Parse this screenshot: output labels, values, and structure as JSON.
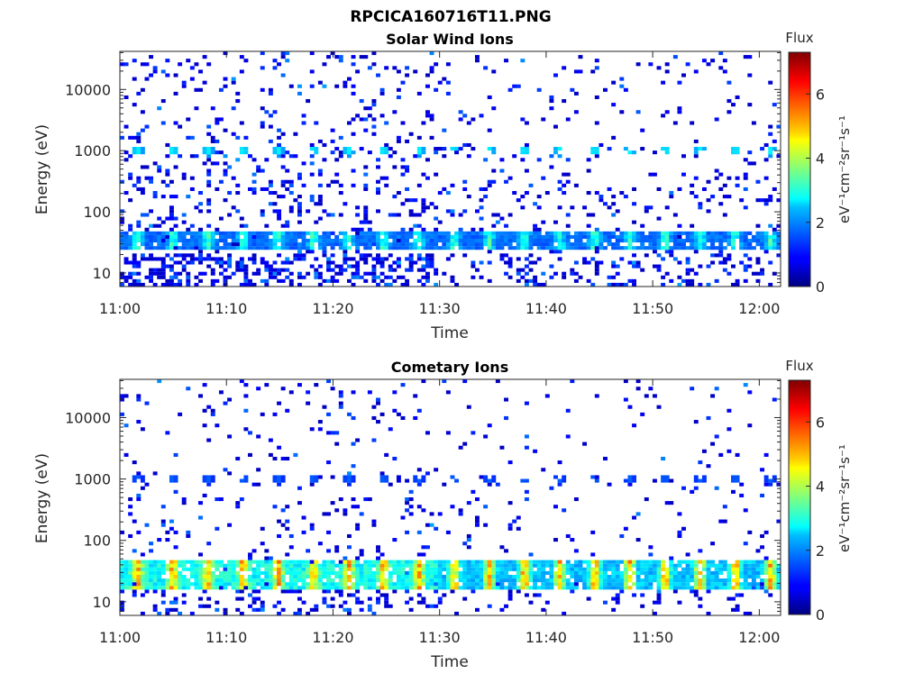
{
  "figure_title": "RPCICA160716T11.PNG",
  "colors": {
    "axis": "#262626",
    "background": "#ffffff"
  },
  "chart_data": [
    {
      "type": "heatmap",
      "title": "Solar Wind Ions",
      "xlabel": "Time",
      "ylabel": "Energy (eV)",
      "x_ticks": [
        "11:00",
        "11:10",
        "11:20",
        "11:30",
        "11:40",
        "11:50",
        "12:00"
      ],
      "x_tick_minutes": [
        0,
        10,
        20,
        30,
        40,
        50,
        60
      ],
      "xlim_minutes": [
        0,
        62
      ],
      "y_scale": "log",
      "y_ticks": [
        "10",
        "100",
        "1000",
        "10000"
      ],
      "y_tick_values": [
        10,
        100,
        1000,
        10000
      ],
      "ylim": [
        6,
        42000
      ],
      "colorbar": {
        "title": "Flux",
        "label": "eV⁻¹cm⁻²sr⁻¹s⁻¹",
        "ticks": [
          "0",
          "2",
          "4",
          "6"
        ],
        "tick_values": [
          0,
          2,
          4,
          6
        ],
        "range": [
          0,
          7.3
        ],
        "colormap": "jet"
      },
      "features": [
        {
          "description": "solar wind proton beam",
          "energy_eV": 1000,
          "flux_peak": 3.0,
          "pulse_period_min": 3.3
        },
        {
          "description": "low-energy band",
          "energy_range_eV": [
            25,
            50
          ],
          "flux_peak": 3.5
        },
        {
          "description": "sparse background counts",
          "energy_range_eV": [
            6,
            42000
          ],
          "flux": 1.0
        }
      ],
      "grid": false
    },
    {
      "type": "heatmap",
      "title": "Cometary Ions",
      "xlabel": "Time",
      "ylabel": "Energy (eV)",
      "x_ticks": [
        "11:00",
        "11:10",
        "11:20",
        "11:30",
        "11:40",
        "11:50",
        "12:00"
      ],
      "x_tick_minutes": [
        0,
        10,
        20,
        30,
        40,
        50,
        60
      ],
      "xlim_minutes": [
        0,
        62
      ],
      "y_scale": "log",
      "y_ticks": [
        "10",
        "100",
        "1000",
        "10000"
      ],
      "y_tick_values": [
        10,
        100,
        1000,
        10000
      ],
      "ylim": [
        6,
        42000
      ],
      "colorbar": {
        "title": "Flux",
        "label": "eV⁻¹cm⁻²sr⁻¹s⁻¹",
        "ticks": [
          "0",
          "2",
          "4",
          "6"
        ],
        "tick_values": [
          0,
          2,
          4,
          6
        ],
        "range": [
          0,
          7.3
        ],
        "colormap": "jet"
      },
      "features": [
        {
          "description": "pulsed band near 1 keV",
          "energy_eV": 1000,
          "flux_peak": 1.8,
          "pulse_period_min": 3.3
        },
        {
          "description": "cometary ion band",
          "energy_range_eV": [
            15,
            50
          ],
          "flux_peak": 5.8
        },
        {
          "description": "sparse background counts",
          "energy_range_eV": [
            6,
            42000
          ],
          "flux": 1.0
        }
      ],
      "grid": false
    }
  ]
}
